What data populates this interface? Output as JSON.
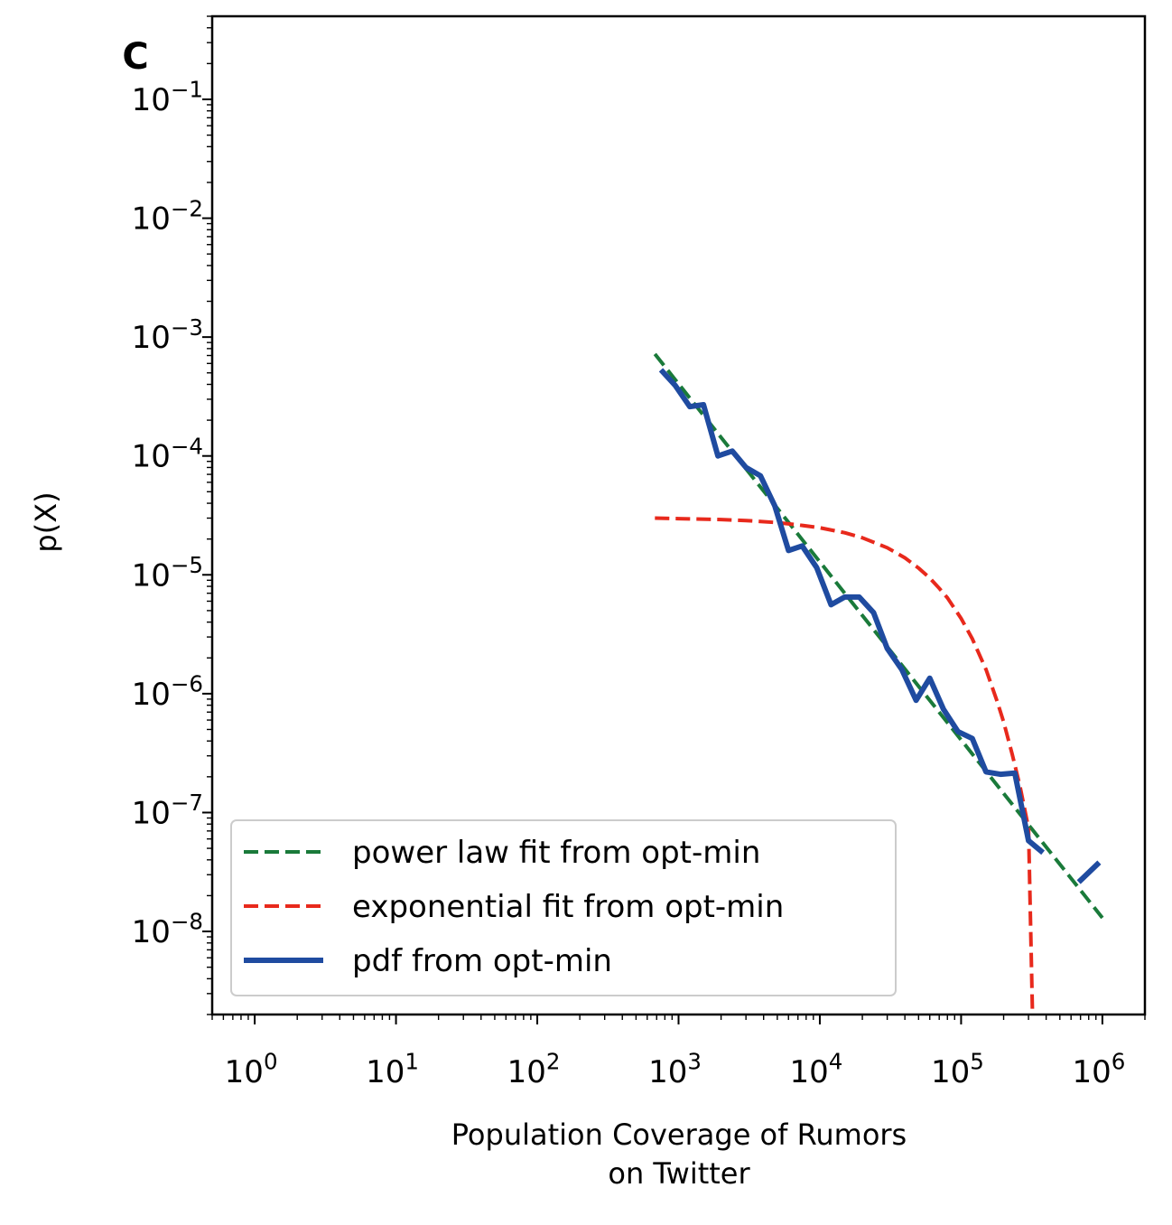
{
  "chart_data": {
    "type": "line",
    "panel_label": "C",
    "xlabel_lines": [
      "Population Coverage of Rumors",
      "on Twitter"
    ],
    "ylabel": "p(X)",
    "xscale": "log",
    "yscale": "log",
    "xlim": [
      0.5,
      2000000
    ],
    "ylim": [
      2e-09,
      0.5
    ],
    "x_ticks": [
      {
        "base": "10",
        "exp": "0"
      },
      {
        "base": "10",
        "exp": "1"
      },
      {
        "base": "10",
        "exp": "2"
      },
      {
        "base": "10",
        "exp": "3"
      },
      {
        "base": "10",
        "exp": "4"
      },
      {
        "base": "10",
        "exp": "5"
      },
      {
        "base": "10",
        "exp": "6"
      }
    ],
    "y_ticks": [
      {
        "base": "10",
        "exp": "−8"
      },
      {
        "base": "10",
        "exp": "−7"
      },
      {
        "base": "10",
        "exp": "−6"
      },
      {
        "base": "10",
        "exp": "−5"
      },
      {
        "base": "10",
        "exp": "−4"
      },
      {
        "base": "10",
        "exp": "−3"
      },
      {
        "base": "10",
        "exp": "−2"
      },
      {
        "base": "10",
        "exp": "−1"
      }
    ],
    "grid": false,
    "legend_position": "lower-left",
    "series": [
      {
        "name": "power law fit from opt-min",
        "color": "#1a7a3a",
        "style": "dashed",
        "x": [
          680,
          1000000
        ],
        "y": [
          0.00072,
          1.3e-08
        ]
      },
      {
        "name": "exponential fit from opt-min",
        "color": "#e8291c",
        "style": "dashed",
        "x": [
          680,
          1000,
          2000,
          3000,
          5000,
          7000,
          10000,
          15000,
          20000,
          30000,
          40000,
          50000,
          60000,
          70000,
          80000,
          100000,
          120000,
          150000,
          180000,
          200000,
          230000,
          260000,
          300000,
          320000
        ],
        "y": [
          3e-05,
          2.97e-05,
          2.92e-05,
          2.86e-05,
          2.75e-05,
          2.63e-05,
          2.49e-05,
          2.26e-05,
          2.05e-05,
          1.69e-05,
          1.39e-05,
          1.14e-05,
          9.4e-06,
          7.7e-06,
          6.4e-06,
          4.3e-06,
          2.9e-06,
          1.6e-06,
          8.6e-07,
          5.8e-07,
          3.1e-07,
          1.7e-07,
          7.4e-08,
          2e-09
        ]
      },
      {
        "name": "pdf from opt-min",
        "color": "#1f4ba0",
        "style": "solid",
        "x": [
          750,
          950,
          1200,
          1500,
          1900,
          2400,
          3000,
          3800,
          4800,
          6000,
          7500,
          9500,
          12000,
          15000,
          19000,
          24000,
          30000,
          38000,
          48000,
          60000,
          75000,
          95000,
          120000,
          150000,
          190000,
          240000,
          300000,
          380000,
          480000,
          680000,
          950000
        ],
        "y": [
          0.00053,
          0.00039,
          0.00026,
          0.00027,
          0.0001,
          0.00011,
          8e-05,
          6.8e-05,
          3.8e-05,
          1.6e-05,
          1.75e-05,
          1.15e-05,
          5.6e-06,
          6.5e-06,
          6.5e-06,
          4.8e-06,
          2.4e-06,
          1.6e-06,
          8.8e-07,
          1.35e-06,
          7.4e-07,
          4.8e-07,
          4.2e-07,
          2.2e-07,
          2.1e-07,
          2.15e-07,
          5.8e-08,
          4.6e-08,
          null,
          2.6e-08,
          3.8e-08
        ]
      }
    ]
  }
}
